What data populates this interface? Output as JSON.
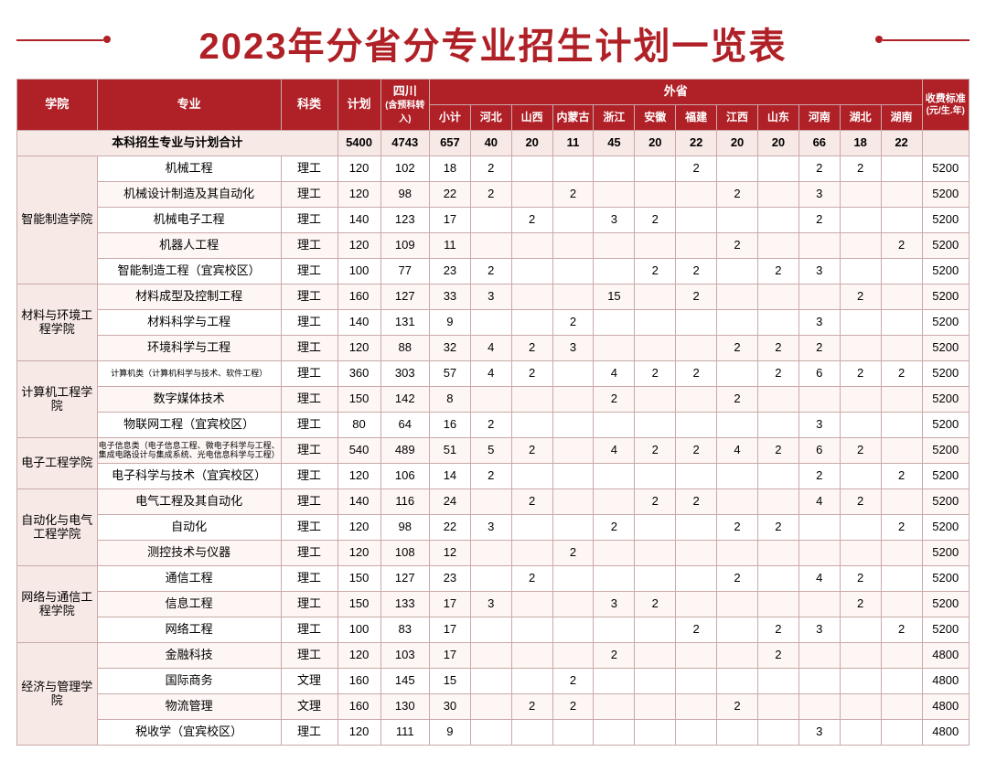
{
  "title": "2023年分省分专业招生计划一览表",
  "colors": {
    "brand": "#b02127",
    "rowAlt": "#fdf6f4",
    "rowBase": "#ffffff",
    "collegeBg": "#f7e9e6",
    "border": "#caa9a9"
  },
  "header": {
    "college": "学院",
    "major": "专业",
    "category": "科类",
    "plan": "计划",
    "sichuan": "四川",
    "sichuan_sub": "(含预科转入)",
    "out_province": "外省",
    "fee": "收费标准",
    "fee_sub": "(元/生.年)",
    "provinces": [
      "小计",
      "河北",
      "山西",
      "内蒙古",
      "浙江",
      "安徽",
      "福建",
      "江西",
      "山东",
      "河南",
      "湖北",
      "湖南"
    ]
  },
  "totals": {
    "label": "本科招生专业与计划合计",
    "plan": "5400",
    "sichuan": "4743",
    "provinces": [
      "657",
      "40",
      "20",
      "11",
      "45",
      "20",
      "22",
      "20",
      "20",
      "66",
      "18",
      "22"
    ],
    "fee": ""
  },
  "colleges": [
    {
      "name": "智能制造学院",
      "rows": [
        {
          "major": "机械工程",
          "cat": "理工",
          "plan": "120",
          "sc": "102",
          "p": [
            "18",
            "2",
            "",
            "",
            "",
            "",
            "2",
            "",
            "",
            "2",
            "2",
            ""
          ],
          "fee": "5200"
        },
        {
          "major": "机械设计制造及其自动化",
          "cat": "理工",
          "plan": "120",
          "sc": "98",
          "p": [
            "22",
            "2",
            "",
            "2",
            "",
            "",
            "",
            "2",
            "",
            "3",
            "",
            ""
          ],
          "fee": "5200"
        },
        {
          "major": "机械电子工程",
          "cat": "理工",
          "plan": "140",
          "sc": "123",
          "p": [
            "17",
            "",
            "2",
            "",
            "3",
            "2",
            "",
            "",
            "",
            "2",
            "",
            ""
          ],
          "fee": "5200"
        },
        {
          "major": "机器人工程",
          "cat": "理工",
          "plan": "120",
          "sc": "109",
          "p": [
            "11",
            "",
            "",
            "",
            "",
            "",
            "",
            "2",
            "",
            "",
            "",
            "2"
          ],
          "fee": "5200"
        },
        {
          "major": "智能制造工程（宜宾校区）",
          "cat": "理工",
          "plan": "100",
          "sc": "77",
          "p": [
            "23",
            "2",
            "",
            "",
            "",
            "2",
            "2",
            "",
            "2",
            "3",
            "",
            ""
          ],
          "fee": "5200"
        }
      ]
    },
    {
      "name": "材料与环境工程学院",
      "rows": [
        {
          "major": "材料成型及控制工程",
          "cat": "理工",
          "plan": "160",
          "sc": "127",
          "p": [
            "33",
            "3",
            "",
            "",
            "15",
            "",
            "2",
            "",
            "",
            "",
            "2",
            ""
          ],
          "fee": "5200"
        },
        {
          "major": "材料科学与工程",
          "cat": "理工",
          "plan": "140",
          "sc": "131",
          "p": [
            "9",
            "",
            "",
            "2",
            "",
            "",
            "",
            "",
            "",
            "3",
            "",
            ""
          ],
          "fee": "5200"
        },
        {
          "major": "环境科学与工程",
          "cat": "理工",
          "plan": "120",
          "sc": "88",
          "p": [
            "32",
            "4",
            "2",
            "3",
            "",
            "",
            "",
            "2",
            "2",
            "2",
            "",
            ""
          ],
          "fee": "5200"
        }
      ]
    },
    {
      "name": "计算机工程学院",
      "rows": [
        {
          "major": "计算机类（计算机科学与技术、软件工程）",
          "cat": "理工",
          "plan": "360",
          "sc": "303",
          "p": [
            "57",
            "4",
            "2",
            "",
            "4",
            "2",
            "2",
            "",
            "2",
            "6",
            "2",
            "2"
          ],
          "fee": "5200",
          "small": true
        },
        {
          "major": "数字媒体技术",
          "cat": "理工",
          "plan": "150",
          "sc": "142",
          "p": [
            "8",
            "",
            "",
            "",
            "2",
            "",
            "",
            "2",
            "",
            "",
            "",
            ""
          ],
          "fee": "5200"
        },
        {
          "major": "物联网工程（宜宾校区）",
          "cat": "理工",
          "plan": "80",
          "sc": "64",
          "p": [
            "16",
            "2",
            "",
            "",
            "",
            "",
            "",
            "",
            "",
            "3",
            "",
            ""
          ],
          "fee": "5200"
        }
      ]
    },
    {
      "name": "电子工程学院",
      "rows": [
        {
          "major": "电子信息类（电子信息工程、微电子科学与工程、集成电路设计与集成系统、光电信息科学与工程）",
          "cat": "理工",
          "plan": "540",
          "sc": "489",
          "p": [
            "51",
            "5",
            "2",
            "",
            "4",
            "2",
            "2",
            "4",
            "2",
            "6",
            "2",
            ""
          ],
          "fee": "5200",
          "small": true
        },
        {
          "major": "电子科学与技术（宜宾校区）",
          "cat": "理工",
          "plan": "120",
          "sc": "106",
          "p": [
            "14",
            "2",
            "",
            "",
            "",
            "",
            "",
            "",
            "",
            "2",
            "",
            "2"
          ],
          "fee": "5200"
        }
      ]
    },
    {
      "name": "自动化与电气工程学院",
      "rows": [
        {
          "major": "电气工程及其自动化",
          "cat": "理工",
          "plan": "140",
          "sc": "116",
          "p": [
            "24",
            "",
            "2",
            "",
            "",
            "2",
            "2",
            "",
            "",
            "4",
            "2",
            ""
          ],
          "fee": "5200"
        },
        {
          "major": "自动化",
          "cat": "理工",
          "plan": "120",
          "sc": "98",
          "p": [
            "22",
            "3",
            "",
            "",
            "2",
            "",
            "",
            "2",
            "2",
            "",
            "",
            "2"
          ],
          "fee": "5200"
        },
        {
          "major": "测控技术与仪器",
          "cat": "理工",
          "plan": "120",
          "sc": "108",
          "p": [
            "12",
            "",
            "",
            "2",
            "",
            "",
            "",
            "",
            "",
            "",
            "",
            ""
          ],
          "fee": "5200"
        }
      ]
    },
    {
      "name": "网络与通信工程学院",
      "rows": [
        {
          "major": "通信工程",
          "cat": "理工",
          "plan": "150",
          "sc": "127",
          "p": [
            "23",
            "",
            "2",
            "",
            "",
            "",
            "",
            "2",
            "",
            "4",
            "2",
            ""
          ],
          "fee": "5200"
        },
        {
          "major": "信息工程",
          "cat": "理工",
          "plan": "150",
          "sc": "133",
          "p": [
            "17",
            "3",
            "",
            "",
            "3",
            "2",
            "",
            "",
            "",
            "",
            "2",
            ""
          ],
          "fee": "5200"
        },
        {
          "major": "网络工程",
          "cat": "理工",
          "plan": "100",
          "sc": "83",
          "p": [
            "17",
            "",
            "",
            "",
            "",
            "",
            "2",
            "",
            "2",
            "3",
            "",
            "2"
          ],
          "fee": "5200"
        }
      ]
    },
    {
      "name": "经济与管理学院",
      "rows": [
        {
          "major": "金融科技",
          "cat": "理工",
          "plan": "120",
          "sc": "103",
          "p": [
            "17",
            "",
            "",
            "",
            "2",
            "",
            "",
            "",
            "2",
            "",
            "",
            ""
          ],
          "fee": "4800"
        },
        {
          "major": "国际商务",
          "cat": "文理",
          "plan": "160",
          "sc": "145",
          "p": [
            "15",
            "",
            "",
            "2",
            "",
            "",
            "",
            "",
            "",
            "",
            "",
            ""
          ],
          "fee": "4800"
        },
        {
          "major": "物流管理",
          "cat": "文理",
          "plan": "160",
          "sc": "130",
          "p": [
            "30",
            "",
            "2",
            "2",
            "",
            "",
            "",
            "2",
            "",
            "",
            "",
            ""
          ],
          "fee": "4800"
        },
        {
          "major": "税收学（宜宾校区）",
          "cat": "理工",
          "plan": "120",
          "sc": "111",
          "p": [
            "9",
            "",
            "",
            "",
            "",
            "",
            "",
            "",
            "",
            "3",
            "",
            ""
          ],
          "fee": "4800"
        }
      ]
    }
  ]
}
